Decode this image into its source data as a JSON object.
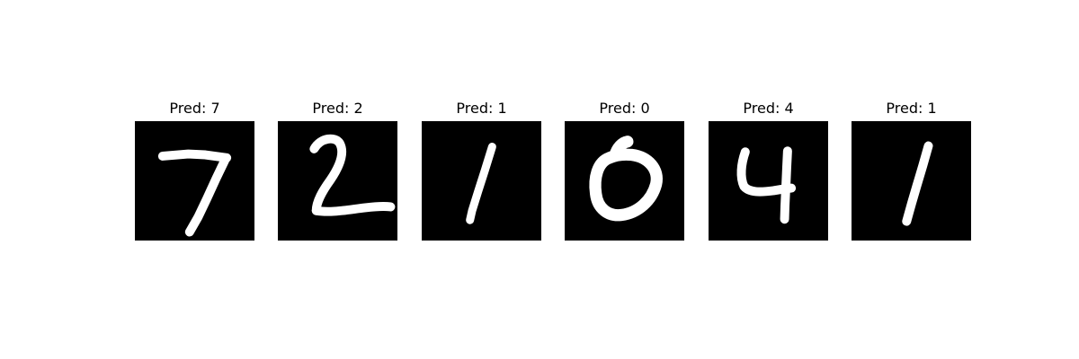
{
  "panels": [
    {
      "title": "Pred: 7",
      "digit": "7"
    },
    {
      "title": "Pred: 2",
      "digit": "2"
    },
    {
      "title": "Pred: 1",
      "digit": "1"
    },
    {
      "title": "Pred: 0",
      "digit": "0"
    },
    {
      "title": "Pred: 4",
      "digit": "4"
    },
    {
      "title": "Pred: 1",
      "digit": "1"
    }
  ]
}
